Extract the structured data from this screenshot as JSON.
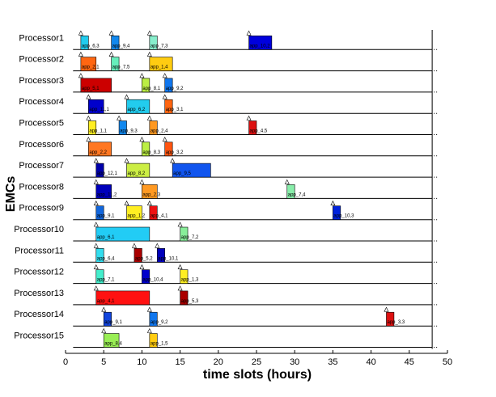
{
  "chart_data": {
    "type": "gantt",
    "xlabel": "time slots (hours)",
    "ylabel": "EMCs",
    "xlim": [
      0,
      50
    ],
    "x_ticks": [
      0,
      5,
      10,
      15,
      20,
      25,
      30,
      35,
      40,
      45,
      50
    ],
    "deadline_marker": 48,
    "grid": false,
    "rows": [
      {
        "name": "Processor1",
        "tasks": [
          {
            "start": 2,
            "end": 3,
            "label": "app_6,3",
            "color": "#22ccee"
          },
          {
            "start": 6,
            "end": 7,
            "label": "app_9,4",
            "color": "#1188ee"
          },
          {
            "start": 11,
            "end": 12,
            "label": "app_7,3",
            "color": "#88eecc"
          },
          {
            "start": 24,
            "end": 27,
            "label": "app_10,2",
            "color": "#0000dd"
          }
        ]
      },
      {
        "name": "Processor2",
        "tasks": [
          {
            "start": 2,
            "end": 4,
            "label": "app_2,1",
            "color": "#ff6611"
          },
          {
            "start": 6,
            "end": 7,
            "label": "app_7,5",
            "color": "#66eebb"
          },
          {
            "start": 11,
            "end": 14,
            "label": "app_1,4",
            "color": "#ffcc11"
          }
        ]
      },
      {
        "name": "Processor3",
        "tasks": [
          {
            "start": 2,
            "end": 6,
            "label": "app_5,1",
            "color": "#cc0000"
          },
          {
            "start": 10,
            "end": 11,
            "label": "app_8,1",
            "color": "#bbee44"
          },
          {
            "start": 13,
            "end": 14,
            "label": "app_9,2",
            "color": "#1177ee"
          }
        ]
      },
      {
        "name": "Processor4",
        "tasks": [
          {
            "start": 3,
            "end": 5,
            "label": "app_11,1",
            "color": "#0000cc"
          },
          {
            "start": 8,
            "end": 11,
            "label": "app_6,2",
            "color": "#22ccee"
          },
          {
            "start": 13,
            "end": 14,
            "label": "app_3,1",
            "color": "#ff6611"
          }
        ]
      },
      {
        "name": "Processor5",
        "tasks": [
          {
            "start": 3,
            "end": 4,
            "label": "app_1,1",
            "color": "#ffee22"
          },
          {
            "start": 7,
            "end": 8,
            "label": "app_9,3",
            "color": "#1188ee"
          },
          {
            "start": 11,
            "end": 12,
            "label": "app_2,4",
            "color": "#ff9922"
          },
          {
            "start": 24,
            "end": 25,
            "label": "app_4,5",
            "color": "#dd1111"
          }
        ]
      },
      {
        "name": "Processor6",
        "tasks": [
          {
            "start": 3,
            "end": 6,
            "label": "app_2,2",
            "color": "#ff7722"
          },
          {
            "start": 10,
            "end": 11,
            "label": "app_8,3",
            "color": "#bbee44"
          },
          {
            "start": 13,
            "end": 14,
            "label": "app_3,2",
            "color": "#ff5511"
          }
        ]
      },
      {
        "name": "Processor7",
        "tasks": [
          {
            "start": 4,
            "end": 5,
            "label": "app_12,1",
            "color": "#0000aa"
          },
          {
            "start": 8,
            "end": 11,
            "label": "app_8,2",
            "color": "#ccee44"
          },
          {
            "start": 14,
            "end": 19,
            "label": "app_9,5",
            "color": "#1155ee"
          }
        ]
      },
      {
        "name": "Processor8",
        "tasks": [
          {
            "start": 4,
            "end": 6,
            "label": "app_11,2",
            "color": "#0000bb"
          },
          {
            "start": 10,
            "end": 12,
            "label": "app_2,3",
            "color": "#ff9922"
          },
          {
            "start": 29,
            "end": 30,
            "label": "app_7,4",
            "color": "#88eeaa"
          }
        ]
      },
      {
        "name": "Processor9",
        "tasks": [
          {
            "start": 4,
            "end": 5,
            "label": "app_9,1",
            "color": "#1166dd"
          },
          {
            "start": 8,
            "end": 10,
            "label": "app_1,2",
            "color": "#ffee22"
          },
          {
            "start": 11,
            "end": 12,
            "label": "app_4,1",
            "color": "#ee1111"
          },
          {
            "start": 35,
            "end": 36,
            "label": "app_10,3",
            "color": "#0022dd"
          }
        ]
      },
      {
        "name": "Processor10",
        "tasks": [
          {
            "start": 4,
            "end": 11,
            "label": "app_6,1",
            "color": "#22ccf5"
          },
          {
            "start": 15,
            "end": 16,
            "label": "app_7,2",
            "color": "#88ee99"
          }
        ]
      },
      {
        "name": "Processor11",
        "tasks": [
          {
            "start": 4,
            "end": 5,
            "label": "app_6,4",
            "color": "#33ddee"
          },
          {
            "start": 9,
            "end": 10,
            "label": "app_5,2",
            "color": "#aa0000"
          },
          {
            "start": 12,
            "end": 13,
            "label": "app_10,1",
            "color": "#0000bb"
          }
        ]
      },
      {
        "name": "Processor12",
        "tasks": [
          {
            "start": 4,
            "end": 5,
            "label": "app_7,1",
            "color": "#44eecc"
          },
          {
            "start": 10,
            "end": 11,
            "label": "app_10,4",
            "color": "#0000cc"
          },
          {
            "start": 15,
            "end": 16,
            "label": "app_1,3",
            "color": "#ffee22"
          }
        ]
      },
      {
        "name": "Processor13",
        "tasks": [
          {
            "start": 4,
            "end": 11,
            "label": "app_4,1",
            "color": "#ff1111"
          },
          {
            "start": 15,
            "end": 16,
            "label": "app_5,3",
            "color": "#aa0000"
          }
        ]
      },
      {
        "name": "Processor14",
        "tasks": [
          {
            "start": 5,
            "end": 6,
            "label": "app_9,1",
            "color": "#1144dd"
          },
          {
            "start": 11,
            "end": 12,
            "label": "app_9,2",
            "color": "#1177ee"
          },
          {
            "start": 42,
            "end": 43,
            "label": "app_3,3",
            "color": "#dd1111"
          }
        ]
      },
      {
        "name": "Processor15",
        "tasks": [
          {
            "start": 5,
            "end": 7,
            "label": "app_8,4",
            "color": "#99ee55"
          },
          {
            "start": 11,
            "end": 12,
            "label": "app_1,5",
            "color": "#ffcc11"
          }
        ]
      }
    ]
  }
}
